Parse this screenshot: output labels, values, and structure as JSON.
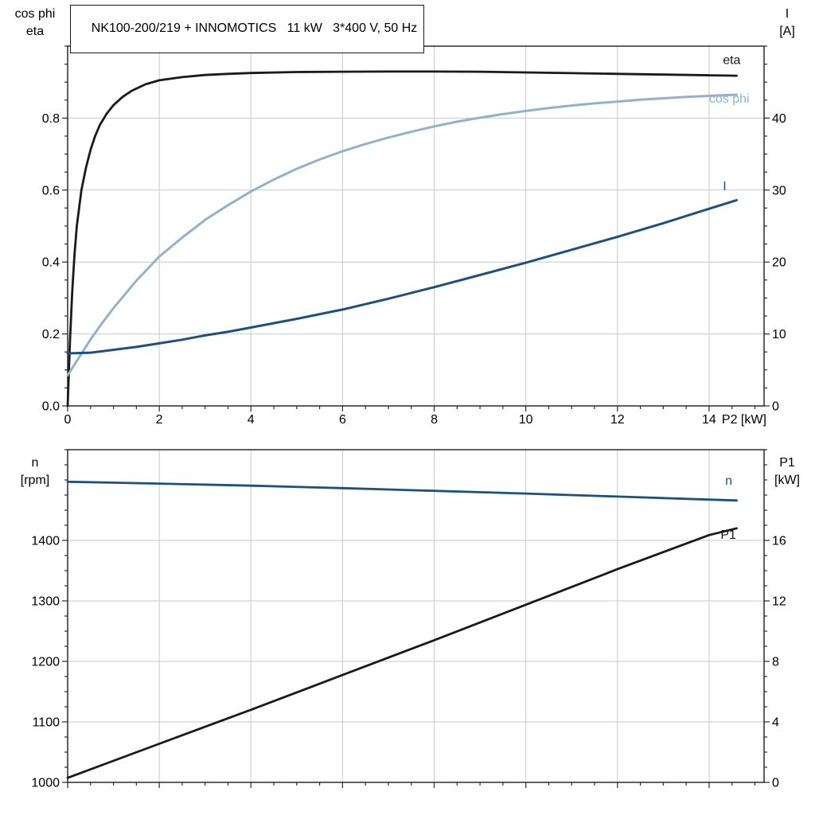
{
  "header": {
    "title": "NK100-200/219 + INNOMOTICS   11 kW   3*400 V, 50 Hz"
  },
  "colors": {
    "black_curve": "#1a1a1a",
    "cosphi_curve": "#92b1cd",
    "blue_curve": "#1c517f",
    "grid": "#c9c9c9",
    "frame": "#2b2b2b",
    "text": "#000000"
  },
  "chart_data": [
    {
      "type": "line",
      "title": "NK100-200/219 + INNOMOTICS   11 kW   3*400 V, 50 Hz",
      "x_range": [
        0,
        15.2
      ],
      "x_ticks": [
        0,
        2,
        4,
        6,
        8,
        10,
        12,
        14
      ],
      "x_tick_labels": [
        "0",
        "2",
        "4",
        "6",
        "8",
        "10",
        "12",
        "14"
      ],
      "x_minor_step": 0.5,
      "xlabel": "P2 [kW]",
      "grid": true,
      "left_axis": {
        "title_lines": [
          "cos phi",
          "eta"
        ],
        "range": [
          0,
          1.0
        ],
        "ticks": [
          0,
          0.2,
          0.4,
          0.6,
          0.8
        ],
        "tick_labels": [
          "0.0",
          "0.2",
          "0.4",
          "0.6",
          "0.8"
        ],
        "minor_step": 0.05
      },
      "right_axis": {
        "title_lines": [
          "I",
          "[A]"
        ],
        "range": [
          0,
          50
        ],
        "ticks": [
          0,
          10,
          20,
          30,
          40
        ],
        "tick_labels": [
          "0",
          "10",
          "20",
          "30",
          "40"
        ],
        "minor_step": 2.5
      },
      "series": [
        {
          "name": "eta",
          "axis": "left",
          "color_key": "black_curve",
          "width": 2.8,
          "label": {
            "text": "eta",
            "x": 14.3,
            "y": 0.95,
            "color_key": "black_curve"
          },
          "points": [
            [
              0,
              0
            ],
            [
              0.05,
              0.18
            ],
            [
              0.1,
              0.32
            ],
            [
              0.15,
              0.42
            ],
            [
              0.2,
              0.5
            ],
            [
              0.3,
              0.6
            ],
            [
              0.4,
              0.662
            ],
            [
              0.5,
              0.712
            ],
            [
              0.6,
              0.75
            ],
            [
              0.7,
              0.78
            ],
            [
              0.85,
              0.812
            ],
            [
              1,
              0.836
            ],
            [
              1.2,
              0.859
            ],
            [
              1.4,
              0.876
            ],
            [
              1.7,
              0.894
            ],
            [
              2,
              0.905
            ],
            [
              2.5,
              0.914
            ],
            [
              3,
              0.92
            ],
            [
              3.5,
              0.923
            ],
            [
              4,
              0.9255
            ],
            [
              5,
              0.928
            ],
            [
              6,
              0.929
            ],
            [
              7,
              0.9295
            ],
            [
              8,
              0.9295
            ],
            [
              9,
              0.929
            ],
            [
              10,
              0.927
            ],
            [
              11,
              0.925
            ],
            [
              12,
              0.923
            ],
            [
              13,
              0.921
            ],
            [
              14,
              0.919
            ],
            [
              14.6,
              0.918
            ]
          ]
        },
        {
          "name": "cos phi",
          "axis": "left",
          "color_key": "cosphi_curve",
          "width": 3,
          "label": {
            "text": "cos phi",
            "x": 14.0,
            "y": 0.843,
            "color_key": "cosphi_curve"
          },
          "points": [
            [
              0,
              0.085
            ],
            [
              0.25,
              0.135
            ],
            [
              0.5,
              0.185
            ],
            [
              0.75,
              0.23
            ],
            [
              1,
              0.272
            ],
            [
              1.5,
              0.348
            ],
            [
              2,
              0.415
            ],
            [
              2.5,
              0.468
            ],
            [
              3,
              0.517
            ],
            [
              3.5,
              0.558
            ],
            [
              4,
              0.596
            ],
            [
              4.5,
              0.629
            ],
            [
              5,
              0.659
            ],
            [
              5.5,
              0.685
            ],
            [
              6,
              0.708
            ],
            [
              6.5,
              0.728
            ],
            [
              7,
              0.746
            ],
            [
              7.5,
              0.762
            ],
            [
              8,
              0.777
            ],
            [
              8.5,
              0.79
            ],
            [
              9,
              0.801
            ],
            [
              9.5,
              0.811
            ],
            [
              10,
              0.82
            ],
            [
              10.5,
              0.828
            ],
            [
              11,
              0.835
            ],
            [
              11.5,
              0.841
            ],
            [
              12,
              0.846
            ],
            [
              12.5,
              0.851
            ],
            [
              13,
              0.855
            ],
            [
              13.5,
              0.859
            ],
            [
              14,
              0.862
            ],
            [
              14.6,
              0.865
            ]
          ]
        },
        {
          "name": "I",
          "axis": "right",
          "color_key": "blue_curve",
          "width": 3,
          "label": {
            "text": "I",
            "x": 14.3,
            "y": 30,
            "color_key": "blue_curve"
          },
          "points": [
            [
              0,
              7.3
            ],
            [
              0.5,
              7.4
            ],
            [
              1,
              7.8
            ],
            [
              1.5,
              8.2
            ],
            [
              2,
              8.7
            ],
            [
              2.5,
              9.2
            ],
            [
              3,
              9.8
            ],
            [
              3.5,
              10.3
            ],
            [
              4,
              10.9
            ],
            [
              5,
              12.1
            ],
            [
              6,
              13.4
            ],
            [
              7,
              14.9
            ],
            [
              8,
              16.5
            ],
            [
              9,
              18.2
            ],
            [
              10,
              19.9
            ],
            [
              11,
              21.7
            ],
            [
              12,
              23.5
            ],
            [
              13,
              25.4
            ],
            [
              14,
              27.4
            ],
            [
              14.6,
              28.6
            ]
          ]
        }
      ]
    },
    {
      "type": "line",
      "title": "",
      "x_range": [
        0,
        15.2
      ],
      "x_ticks": [
        0,
        2,
        4,
        6,
        8,
        10,
        12,
        14
      ],
      "x_tick_labels": [],
      "x_minor_step": 0.5,
      "xlabel": "",
      "grid": true,
      "left_axis": {
        "title_lines": [
          "n",
          "[rpm]"
        ],
        "range": [
          1000,
          1550
        ],
        "ticks": [
          1000,
          1100,
          1200,
          1300,
          1400
        ],
        "tick_labels": [
          "1000",
          "1100",
          "1200",
          "1300",
          "1400"
        ],
        "minor_step": 25
      },
      "right_axis": {
        "title_lines": [
          "P1",
          "[kW]"
        ],
        "range": [
          0,
          22
        ],
        "ticks": [
          0,
          4,
          8,
          12,
          16
        ],
        "tick_labels": [
          "0",
          "4",
          "8",
          "12",
          "16"
        ],
        "minor_step": 1
      },
      "series": [
        {
          "name": "n",
          "axis": "left",
          "color_key": "blue_curve",
          "width": 2.8,
          "label": {
            "text": "n",
            "x": 14.35,
            "y": 1492,
            "color_key": "blue_curve"
          },
          "points": [
            [
              0,
              1497
            ],
            [
              2,
              1494
            ],
            [
              4,
              1490.5
            ],
            [
              6,
              1486.5
            ],
            [
              8,
              1482
            ],
            [
              10,
              1477.5
            ],
            [
              12,
              1472.5
            ],
            [
              14,
              1467.5
            ],
            [
              14.6,
              1466
            ]
          ]
        },
        {
          "name": "P1",
          "axis": "right",
          "color_key": "black_curve",
          "width": 2.8,
          "label": {
            "text": "P1",
            "x": 14.25,
            "y": 16.1,
            "color_key": "black_curve"
          },
          "points": [
            [
              0,
              0.3
            ],
            [
              2,
              2.55
            ],
            [
              4,
              4.8
            ],
            [
              6,
              7.1
            ],
            [
              8,
              9.4
            ],
            [
              10,
              11.75
            ],
            [
              12,
              14.1
            ],
            [
              14,
              16.35
            ],
            [
              14.6,
              16.8
            ]
          ]
        }
      ]
    }
  ]
}
